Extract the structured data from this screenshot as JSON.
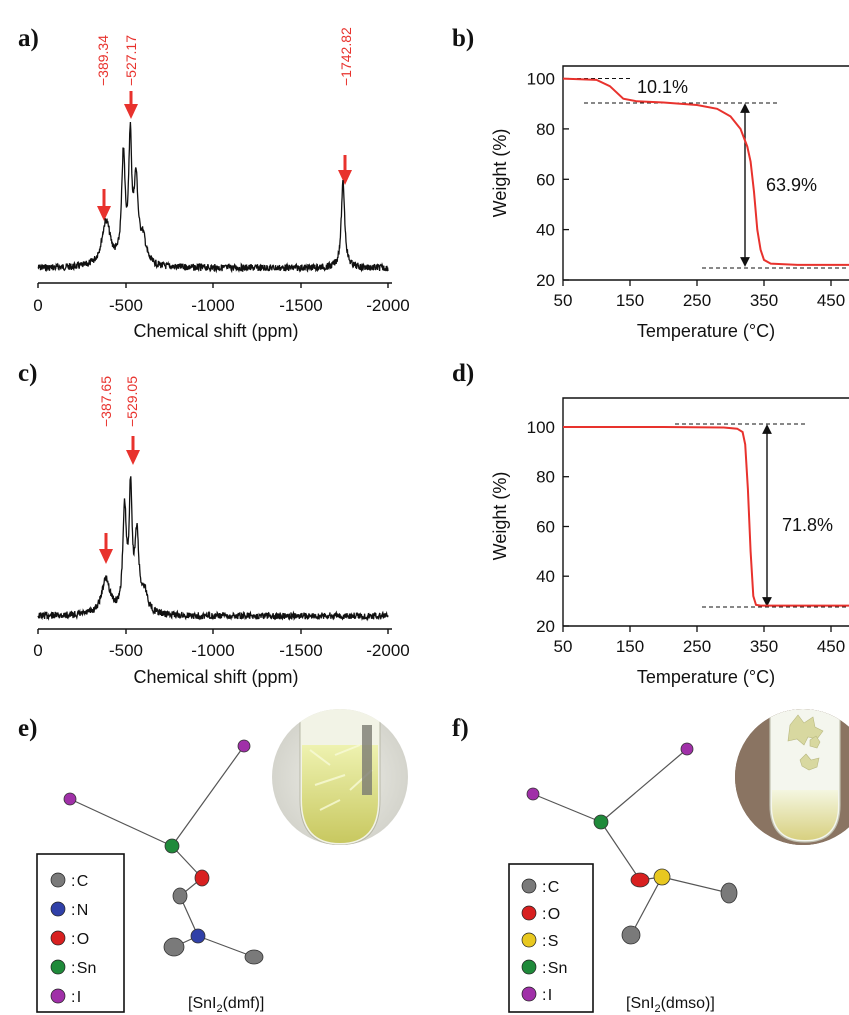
{
  "chart_data": [
    {
      "panel": "a)",
      "type": "line",
      "xlabel": "Chemical shift (ppm)",
      "ylabel": "",
      "xlim": [
        0,
        -2000
      ],
      "xticks": [
        "0",
        "-500",
        "-1000",
        "-1500",
        "-2000"
      ],
      "peak_labels": [
        "−389.34",
        "−527.17",
        "−1742.82"
      ],
      "peaks": [
        -389.34,
        -527.17,
        -1742.82
      ],
      "grid": false
    },
    {
      "panel": "b)",
      "type": "line",
      "xlabel": "Temperature (°C)",
      "ylabel": "Weight (%)",
      "xlim": [
        50,
        500
      ],
      "ylim": [
        20,
        105
      ],
      "xticks": [
        "50",
        "150",
        "250",
        "350",
        "450"
      ],
      "yticks": [
        "20",
        "40",
        "60",
        "80",
        "100"
      ],
      "x": [
        50,
        100,
        120,
        140,
        160,
        200,
        250,
        280,
        300,
        315,
        325,
        330,
        335,
        340,
        345,
        350,
        360,
        400,
        500
      ],
      "y": [
        100,
        99.5,
        97,
        92,
        91,
        90.5,
        89.5,
        88,
        85,
        80,
        73,
        67,
        55,
        40,
        32,
        28,
        26.5,
        26,
        26
      ],
      "annotations": [
        "10.1%",
        "63.9%"
      ],
      "grid": false
    },
    {
      "panel": "c)",
      "type": "line",
      "xlabel": "Chemical shift (ppm)",
      "ylabel": "",
      "xlim": [
        0,
        -2000
      ],
      "xticks": [
        "0",
        "-500",
        "-1000",
        "-1500",
        "-2000"
      ],
      "peak_labels": [
        "−387.65",
        "−529.05"
      ],
      "peaks": [
        -387.65,
        -529.05
      ],
      "grid": false
    },
    {
      "panel": "d)",
      "type": "line",
      "xlabel": "Temperature (°C)",
      "ylabel": "Weight (%)",
      "xlim": [
        50,
        500
      ],
      "ylim": [
        20,
        105
      ],
      "xticks": [
        "50",
        "150",
        "250",
        "350",
        "450"
      ],
      "yticks": [
        "20",
        "40",
        "60",
        "80",
        "100"
      ],
      "x": [
        50,
        200,
        290,
        310,
        318,
        322,
        326,
        330,
        334,
        338,
        345,
        400,
        500
      ],
      "y": [
        100,
        100,
        99.8,
        99.3,
        98,
        93,
        75,
        50,
        32,
        28.5,
        28.2,
        28.2,
        28.2
      ],
      "annotations": [
        "71.8%"
      ],
      "grid": false
    }
  ],
  "panel_e": {
    "label": "e)",
    "formula_prefix": "[SnI",
    "formula_sub": "2",
    "formula_suffix": "(dmf)]",
    "legend": [
      {
        "symbol": "C",
        "color": "#7a7a7a"
      },
      {
        "symbol": "N",
        "color": "#3040a8"
      },
      {
        "symbol": "O",
        "color": "#d82020"
      },
      {
        "symbol": "Sn",
        "color": "#1f8a3a"
      },
      {
        "symbol": "I",
        "color": "#a030a8"
      }
    ]
  },
  "panel_f": {
    "label": "f)",
    "formula_prefix": "[SnI",
    "formula_sub": "2",
    "formula_suffix": "(dmso)]",
    "legend": [
      {
        "symbol": "C",
        "color": "#7a7a7a"
      },
      {
        "symbol": "O",
        "color": "#d82020"
      },
      {
        "symbol": "S",
        "color": "#e8c820"
      },
      {
        "symbol": "Sn",
        "color": "#1f8a3a"
      },
      {
        "symbol": "I",
        "color": "#a030a8"
      }
    ]
  },
  "colors": {
    "curve_red": "#e8322d",
    "arrow_red": "#e8322d",
    "nmr_line": "#111111"
  }
}
